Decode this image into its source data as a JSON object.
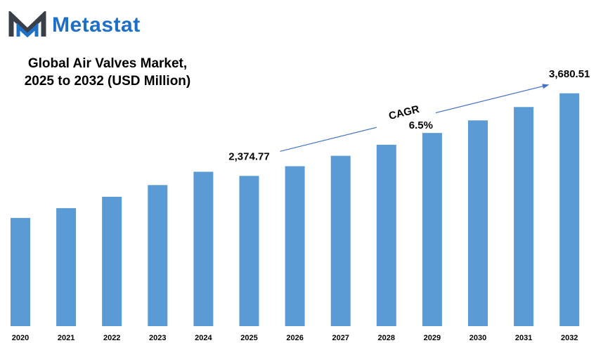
{
  "brand": {
    "name": "Metastat"
  },
  "title_line1": "Global Air Valves Market,",
  "title_line2": "2025 to 2032 (USD Million)",
  "colors": {
    "bar": "#5b9bd5",
    "brand": "#1e6fc6",
    "logo_dark": "#3a3f47",
    "arrow": "#4472c4"
  },
  "chart_data": {
    "type": "bar",
    "categories": [
      "2020",
      "2021",
      "2022",
      "2023",
      "2024",
      "2025",
      "2026",
      "2027",
      "2028",
      "2029",
      "2030",
      "2031",
      "2032"
    ],
    "values": [
      1710,
      1865,
      2045,
      2230,
      2440,
      2374.77,
      2528.13,
      2692.4,
      2867.4,
      3053.78,
      3252.27,
      3463.67,
      3680.51
    ],
    "data_labels": [
      {
        "category": "2025",
        "text": "2,374.77"
      },
      {
        "category": "2032",
        "text": "3,680.51"
      }
    ],
    "annotation": {
      "label": "CAGR",
      "value": "6.5%",
      "from": "2025",
      "to": "2032"
    },
    "ylim": [
      0,
      3900
    ],
    "grid": false,
    "legend": "none"
  }
}
